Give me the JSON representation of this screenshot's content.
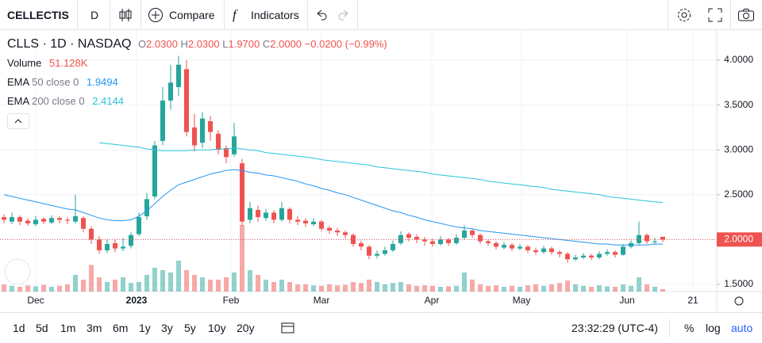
{
  "toolbar": {
    "symbol": "CELLECTIS",
    "interval": "D",
    "compare": "Compare",
    "indicators": "Indicators"
  },
  "chart_data": {
    "type": "candlestick",
    "ticker": "CLLS",
    "period": "1D",
    "exchange": "NASDAQ",
    "ohlc_letters": [
      "O",
      "H",
      "L",
      "C"
    ],
    "ohlc_labels": [
      "2.0300",
      "2.0300",
      "1.9700",
      "2.0000"
    ],
    "change": "−0.0200 (−0.99%)",
    "up_color": "#26a69a",
    "down_color": "#ef5350",
    "xlim": [
      -0.5,
      89.8
    ],
    "xticks": [
      {
        "value": 4,
        "label": "Dec"
      },
      {
        "value": 16.7,
        "label": "2023"
      },
      {
        "value": 28.6,
        "label": "Feb"
      },
      {
        "value": 40,
        "label": "Mar"
      },
      {
        "value": 53.9,
        "label": "Apr"
      },
      {
        "value": 65.2,
        "label": "May"
      },
      {
        "value": 78.5,
        "label": "Jun"
      },
      {
        "value": 86.8,
        "label": "21"
      }
    ],
    "ylim": [
      1.42,
      4.336
    ],
    "yticks": [
      {
        "value": 1.5,
        "label": "1.5000"
      },
      {
        "value": 2,
        "label": "2.0000"
      },
      {
        "value": 2.5,
        "label": "2.5000"
      },
      {
        "value": 3,
        "label": "3.0000"
      },
      {
        "value": 3.5,
        "label": "3.5000"
      },
      {
        "value": 4,
        "label": "4.0000"
      }
    ],
    "grid": true,
    "ohlc": [
      [
        2.25,
        2.28,
        2.18,
        2.22
      ],
      [
        2.2,
        2.3,
        2.17,
        2.25
      ],
      [
        2.25,
        2.27,
        2.16,
        2.2
      ],
      [
        2.21,
        2.24,
        2.15,
        2.18
      ],
      [
        2.17,
        2.26,
        2.15,
        2.22
      ],
      [
        2.23,
        2.25,
        2.17,
        2.2
      ],
      [
        2.19,
        2.27,
        2.17,
        2.24
      ],
      [
        2.24,
        2.26,
        2.18,
        2.22
      ],
      [
        2.22,
        2.25,
        2.17,
        2.21
      ],
      [
        2.2,
        2.5,
        2.18,
        2.26
      ],
      [
        2.24,
        2.26,
        2.08,
        2.12
      ],
      [
        2.12,
        2.15,
        1.95,
        2.0
      ],
      [
        2.0,
        2.04,
        1.84,
        1.88
      ],
      [
        1.88,
        2.0,
        1.85,
        1.95
      ],
      [
        1.96,
        2.0,
        1.86,
        1.9
      ],
      [
        1.9,
        2.02,
        1.87,
        1.92
      ],
      [
        1.93,
        2.08,
        1.9,
        2.05
      ],
      [
        2.06,
        2.3,
        2.04,
        2.25
      ],
      [
        2.26,
        2.52,
        2.22,
        2.45
      ],
      [
        2.48,
        3.1,
        2.45,
        3.05
      ],
      [
        3.1,
        3.7,
        3.05,
        3.55
      ],
      [
        3.55,
        3.95,
        3.45,
        3.75
      ],
      [
        3.7,
        4.05,
        3.6,
        3.95
      ],
      [
        3.9,
        4.0,
        3.15,
        3.2
      ],
      [
        3.25,
        3.4,
        2.98,
        3.05
      ],
      [
        3.08,
        3.42,
        3.02,
        3.35
      ],
      [
        3.32,
        3.38,
        3.1,
        3.2
      ],
      [
        3.18,
        3.22,
        2.95,
        3.0
      ],
      [
        3.02,
        3.05,
        2.85,
        2.92
      ],
      [
        2.95,
        3.3,
        2.92,
        3.15
      ],
      [
        2.85,
        2.9,
        2.15,
        2.2
      ],
      [
        2.22,
        2.42,
        2.18,
        2.35
      ],
      [
        2.33,
        2.38,
        2.2,
        2.25
      ],
      [
        2.24,
        2.34,
        2.21,
        2.3
      ],
      [
        2.3,
        2.33,
        2.18,
        2.22
      ],
      [
        2.22,
        2.42,
        2.2,
        2.35
      ],
      [
        2.34,
        2.36,
        2.18,
        2.22
      ],
      [
        2.22,
        2.26,
        2.16,
        2.2
      ],
      [
        2.21,
        2.24,
        2.14,
        2.18
      ],
      [
        2.17,
        2.24,
        2.15,
        2.2
      ],
      [
        2.2,
        2.22,
        2.09,
        2.12
      ],
      [
        2.13,
        2.15,
        2.06,
        2.1
      ],
      [
        2.1,
        2.13,
        2.04,
        2.08
      ],
      [
        2.08,
        2.1,
        2.01,
        2.05
      ],
      [
        2.05,
        2.07,
        1.92,
        1.95
      ],
      [
        1.96,
        1.99,
        1.88,
        1.92
      ],
      [
        1.92,
        1.94,
        1.78,
        1.82
      ],
      [
        1.82,
        1.88,
        1.79,
        1.84
      ],
      [
        1.84,
        1.92,
        1.82,
        1.88
      ],
      [
        1.88,
        1.99,
        1.86,
        1.95
      ],
      [
        1.96,
        2.09,
        1.94,
        2.05
      ],
      [
        2.06,
        2.08,
        1.98,
        2.02
      ],
      [
        2.03,
        2.06,
        1.96,
        2.0
      ],
      [
        2.0,
        2.03,
        1.93,
        1.98
      ],
      [
        1.98,
        2.01,
        1.92,
        1.95
      ],
      [
        1.95,
        2.04,
        1.93,
        2.0
      ],
      [
        2.0,
        2.02,
        1.93,
        1.96
      ],
      [
        1.96,
        2.06,
        1.94,
        2.02
      ],
      [
        2.02,
        2.16,
        2.0,
        2.1
      ],
      [
        2.1,
        2.12,
        2.02,
        2.05
      ],
      [
        2.05,
        2.07,
        1.95,
        1.98
      ],
      [
        1.98,
        2.0,
        1.93,
        1.96
      ],
      [
        1.96,
        1.98,
        1.89,
        1.92
      ],
      [
        1.91,
        1.97,
        1.89,
        1.94
      ],
      [
        1.94,
        1.96,
        1.87,
        1.9
      ],
      [
        1.9,
        1.95,
        1.88,
        1.92
      ],
      [
        1.92,
        1.94,
        1.85,
        1.88
      ],
      [
        1.88,
        1.91,
        1.83,
        1.86
      ],
      [
        1.86,
        1.93,
        1.84,
        1.9
      ],
      [
        1.9,
        1.92,
        1.83,
        1.86
      ],
      [
        1.86,
        1.88,
        1.8,
        1.84
      ],
      [
        1.84,
        1.86,
        1.74,
        1.78
      ],
      [
        1.78,
        1.83,
        1.76,
        1.8
      ],
      [
        1.8,
        1.85,
        1.78,
        1.82
      ],
      [
        1.82,
        1.84,
        1.77,
        1.8
      ],
      [
        1.8,
        1.87,
        1.78,
        1.84
      ],
      [
        1.84,
        1.89,
        1.82,
        1.86
      ],
      [
        1.86,
        1.88,
        1.8,
        1.83
      ],
      [
        1.83,
        1.95,
        1.82,
        1.92
      ],
      [
        1.92,
        1.99,
        1.9,
        1.96
      ],
      [
        1.96,
        2.2,
        1.94,
        2.05
      ],
      [
        2.05,
        2.07,
        1.95,
        1.98
      ],
      [
        1.97,
        2.02,
        1.95,
        1.98
      ],
      [
        2.03,
        2.03,
        1.97,
        2.0
      ]
    ],
    "volume": {
      "name": "Volume",
      "lim": [
        0,
        1500
      ],
      "values": [
        150,
        120,
        100,
        130,
        110,
        140,
        100,
        120,
        150,
        350,
        250,
        560,
        300,
        200,
        250,
        300,
        180,
        200,
        350,
        500,
        450,
        400,
        650,
        450,
        350,
        300,
        250,
        250,
        300,
        400,
        1400,
        450,
        350,
        250,
        200,
        250,
        200,
        150,
        150,
        130,
        120,
        150,
        130,
        140,
        200,
        180,
        250,
        200,
        150,
        180,
        200,
        150,
        120,
        130,
        120,
        100,
        110,
        120,
        400,
        250,
        150,
        120,
        130,
        100,
        120,
        100,
        130,
        150,
        120,
        150,
        180,
        230,
        150,
        120,
        100,
        130,
        110,
        100,
        150,
        120,
        300,
        150,
        100,
        51.128
      ],
      "value_labels": [
        null,
        null,
        null,
        null,
        null,
        null,
        null,
        null,
        null,
        null,
        null,
        null,
        null,
        null,
        null,
        null,
        null,
        null,
        null,
        null,
        null,
        null,
        null,
        null,
        null,
        null,
        null,
        null,
        null,
        null,
        null,
        null,
        null,
        null,
        null,
        null,
        null,
        null,
        null,
        null,
        null,
        null,
        null,
        null,
        null,
        null,
        null,
        null,
        null,
        null,
        null,
        null,
        null,
        null,
        null,
        null,
        null,
        null,
        null,
        null,
        null,
        null,
        null,
        null,
        null,
        null,
        null,
        null,
        null,
        null,
        null,
        null,
        null,
        null,
        null,
        null,
        null,
        null,
        null,
        null,
        null,
        null,
        null,
        "51.128K"
      ]
    },
    "series": [
      {
        "name": "EMA",
        "params": "50 close 0",
        "color": "#2196f3",
        "values": [
          2.5,
          2.48,
          2.46,
          2.44,
          2.42,
          2.4,
          2.38,
          2.36,
          2.34,
          2.33,
          2.3,
          2.27,
          2.24,
          2.22,
          2.21,
          2.21,
          2.22,
          2.26,
          2.32,
          2.4,
          2.48,
          2.55,
          2.61,
          2.64,
          2.67,
          2.7,
          2.73,
          2.75,
          2.77,
          2.78,
          2.77,
          2.75,
          2.74,
          2.72,
          2.71,
          2.69,
          2.67,
          2.65,
          2.62,
          2.6,
          2.57,
          2.55,
          2.52,
          2.5,
          2.47,
          2.44,
          2.41,
          2.38,
          2.35,
          2.32,
          2.3,
          2.27,
          2.25,
          2.22,
          2.2,
          2.18,
          2.16,
          2.14,
          2.13,
          2.12,
          2.1,
          2.09,
          2.08,
          2.07,
          2.06,
          2.05,
          2.04,
          2.03,
          2.02,
          2.01,
          2.0,
          1.99,
          1.98,
          1.97,
          1.96,
          1.95,
          1.95,
          1.94,
          1.94,
          1.94,
          1.94,
          1.94,
          1.95,
          1.9494
        ]
      },
      {
        "name": "EMA",
        "params": "200 close 0",
        "color": "#26c6da",
        "values": [
          null,
          null,
          null,
          null,
          null,
          null,
          null,
          null,
          null,
          null,
          null,
          null,
          3.08,
          3.07,
          3.06,
          3.05,
          3.04,
          3.03,
          3.01,
          3.0,
          2.99,
          2.99,
          2.99,
          2.99,
          3.0,
          3.0,
          3.0,
          3.01,
          3.01,
          3.02,
          3.01,
          3.0,
          2.99,
          2.97,
          2.96,
          2.95,
          2.94,
          2.93,
          2.92,
          2.91,
          2.89,
          2.88,
          2.87,
          2.86,
          2.85,
          2.84,
          2.83,
          2.81,
          2.8,
          2.79,
          2.78,
          2.77,
          2.76,
          2.75,
          2.73,
          2.72,
          2.71,
          2.7,
          2.69,
          2.68,
          2.67,
          2.65,
          2.64,
          2.63,
          2.62,
          2.61,
          2.6,
          2.59,
          2.58,
          2.56,
          2.55,
          2.54,
          2.53,
          2.52,
          2.51,
          2.5,
          2.48,
          2.47,
          2.46,
          2.45,
          2.44,
          2.43,
          2.42,
          2.4144
        ]
      }
    ]
  },
  "bottom_bar": {
    "ranges": [
      "1d",
      "5d",
      "1m",
      "3m",
      "6m",
      "1y",
      "3y",
      "5y",
      "10y",
      "20y"
    ],
    "time": "23:32:29 (UTC-4)",
    "scale_options": [
      "%",
      "log",
      "auto"
    ]
  }
}
